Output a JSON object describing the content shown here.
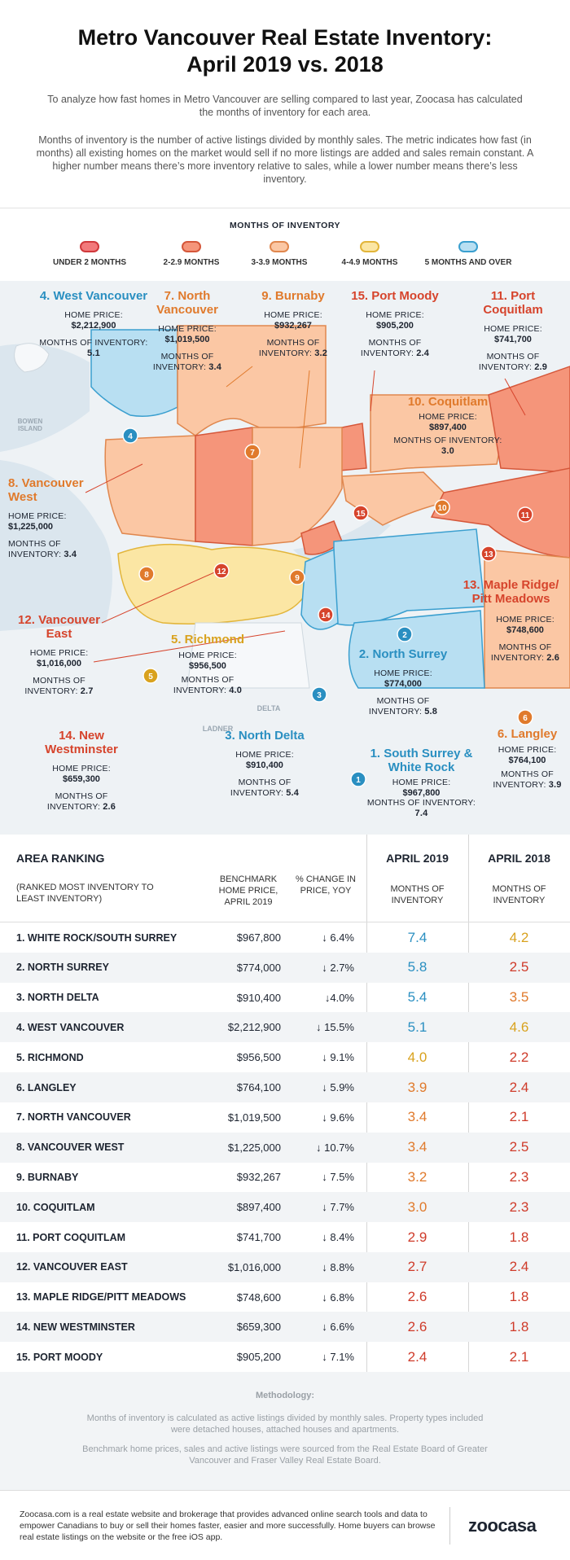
{
  "header": {
    "title_line1": "Metro Vancouver Real Estate Inventory:",
    "title_line2": "April 2019 vs. 2018",
    "intro": "To analyze how fast homes in Metro Vancouver are selling compared to last year, Zoocasa has calculated the months of inventory for each area.",
    "explanation": "Months of inventory is the number of active listings divided by monthly sales. The metric indicates how fast (in months) all existing homes on the market would sell if no more listings are added and sales remain constant. A higher number means there’s more inventory relative to sales, while a lower number means there’s less inventory."
  },
  "legend": {
    "title": "MONTHS OF INVENTORY",
    "items": [
      {
        "label": "UNDER 2 MONTHS",
        "fill": "#f2797b",
        "stroke": "#d0393c"
      },
      {
        "label": "2-2.9 MONTHS",
        "fill": "#f5957a",
        "stroke": "#d5573a"
      },
      {
        "label": "3-3.9 MONTHS",
        "fill": "#fbc7a4",
        "stroke": "#e0874e"
      },
      {
        "label": "4-4.9 MONTHS",
        "fill": "#fbe6a4",
        "stroke": "#e2b53a"
      },
      {
        "label": "5 MONTHS AND OVER",
        "fill": "#b8dff2",
        "stroke": "#3a9fcf"
      }
    ]
  },
  "map": {
    "field_price": "HOME PRICE:",
    "field_months": "MONTHS OF INVENTORY:",
    "bowen_island": "BOWEN ISLAND",
    "delta_label": "DELTA",
    "ladner_label": "LADNER",
    "areas": [
      {
        "num": "4",
        "name": "4. West Vancouver",
        "price": "$2,212,900",
        "months": "5.1",
        "color": "#2a8fc1"
      },
      {
        "num": "7",
        "name": "7. North Vancouver",
        "price": "$1,019,500",
        "months": "3.4",
        "color": "#e07a2c"
      },
      {
        "num": "9",
        "name": "9. Burnaby",
        "price": "$932,267",
        "months": "3.2",
        "color": "#e07a2c"
      },
      {
        "num": "15",
        "name": "15. Port Moody",
        "price": "$905,200",
        "months": "2.4",
        "color": "#d6442c"
      },
      {
        "num": "11",
        "name": "11. Port Coquitlam",
        "price": "$741,700",
        "months": "2.9",
        "color": "#d6442c"
      },
      {
        "num": "10",
        "name": "10. Coquitlam",
        "price": "$897,400",
        "months": "3.0",
        "color": "#e07a2c"
      },
      {
        "num": "8",
        "name": "8. Vancouver West",
        "price": "$1,225,000",
        "months": "3.4",
        "color": "#e07a2c"
      },
      {
        "num": "13",
        "name": "13. Maple Ridge/ Pitt Meadows",
        "price": "$748,600",
        "months": "2.6",
        "color": "#d6442c"
      },
      {
        "num": "12",
        "name": "12. Vancouver East",
        "price": "$1,016,000",
        "months": "2.7",
        "color": "#d6442c"
      },
      {
        "num": "5",
        "name": "5. Richmond",
        "price": "$956,500",
        "months": "4.0",
        "color": "#d9a21e"
      },
      {
        "num": "2",
        "name": "2. North Surrey",
        "price": "$774,000",
        "months": "5.8",
        "color": "#2a8fc1"
      },
      {
        "num": "6",
        "name": "6. Langley",
        "price": "$764,100",
        "months": "3.9",
        "color": "#e07a2c"
      },
      {
        "num": "14",
        "name": "14. New Westminster",
        "price": "$659,300",
        "months": "2.6",
        "color": "#d6442c"
      },
      {
        "num": "3",
        "name": "3. North Delta",
        "price": "$910,400",
        "months": "5.4",
        "color": "#2a8fc1"
      },
      {
        "num": "1",
        "name": "1. South Surrey & White Rock",
        "price": "$967,800",
        "months": "7.4",
        "color": "#2a8fc1"
      }
    ]
  },
  "table": {
    "h_ranking": "AREA RANKING",
    "h_ranking_sub": "(RANKED MOST INVENTORY TO LEAST INVENTORY)",
    "h_price": "BENCHMARK HOME PRICE, APRIL 2019",
    "h_change": "% CHANGE IN PRICE, YOY",
    "h_2019": "APRIL 2019",
    "h_2018": "APRIL 2018",
    "h_moi": "MONTHS OF INVENTORY"
  },
  "chart_data": {
    "type": "table",
    "columns": [
      "Area",
      "Benchmark home price, April 2019",
      "% change in price, YOY",
      "April 2019 months of inventory",
      "April 2018 months of inventory"
    ],
    "rows": [
      {
        "area": "1. WHITE ROCK/SOUTH SURREY",
        "price": "$967,800",
        "change": "↓ 6.4%",
        "m2019": "7.4",
        "m2018": "4.2",
        "c2019": "#2a8fc1",
        "c2018": "#d9a21e"
      },
      {
        "area": "2. NORTH SURREY",
        "price": "$774,000",
        "change": "↓ 2.7%",
        "m2019": "5.8",
        "m2018": "2.5",
        "c2019": "#2a8fc1",
        "c2018": "#cf3b2a"
      },
      {
        "area": "3. NORTH DELTA",
        "price": "$910,400",
        "change": "↓4.0%",
        "m2019": "5.4",
        "m2018": "3.5",
        "c2019": "#2a8fc1",
        "c2018": "#e07a2c"
      },
      {
        "area": "4. WEST VANCOUVER",
        "price": "$2,212,900",
        "change": "↓ 15.5%",
        "m2019": "5.1",
        "m2018": "4.6",
        "c2019": "#2a8fc1",
        "c2018": "#d9a21e"
      },
      {
        "area": "5. RICHMOND",
        "price": "$956,500",
        "change": "↓ 9.1%",
        "m2019": "4.0",
        "m2018": "2.2",
        "c2019": "#d9a21e",
        "c2018": "#cf3b2a"
      },
      {
        "area": "6. LANGLEY",
        "price": "$764,100",
        "change": "↓ 5.9%",
        "m2019": "3.9",
        "m2018": "2.4",
        "c2019": "#e07a2c",
        "c2018": "#cf3b2a"
      },
      {
        "area": "7. NORTH VANCOUVER",
        "price": "$1,019,500",
        "change": "↓ 9.6%",
        "m2019": "3.4",
        "m2018": "2.1",
        "c2019": "#e07a2c",
        "c2018": "#cf3b2a"
      },
      {
        "area": "8. VANCOUVER WEST",
        "price": "$1,225,000",
        "change": "↓ 10.7%",
        "m2019": "3.4",
        "m2018": "2.5",
        "c2019": "#e07a2c",
        "c2018": "#cf3b2a"
      },
      {
        "area": "9. BURNABY",
        "price": "$932,267",
        "change": "↓ 7.5%",
        "m2019": "3.2",
        "m2018": "2.3",
        "c2019": "#e07a2c",
        "c2018": "#cf3b2a"
      },
      {
        "area": "10. COQUITLAM",
        "price": "$897,400",
        "change": "↓ 7.7%",
        "m2019": "3.0",
        "m2018": "2.3",
        "c2019": "#e07a2c",
        "c2018": "#cf3b2a"
      },
      {
        "area": "11. PORT COQUITLAM",
        "price": "$741,700",
        "change": "↓ 8.4%",
        "m2019": "2.9",
        "m2018": "1.8",
        "c2019": "#cf3b2a",
        "c2018": "#cf3b2a"
      },
      {
        "area": "12. VANCOUVER EAST",
        "price": "$1,016,000",
        "change": "↓ 8.8%",
        "m2019": "2.7",
        "m2018": "2.4",
        "c2019": "#cf3b2a",
        "c2018": "#cf3b2a"
      },
      {
        "area": "13. MAPLE RIDGE/PITT MEADOWS",
        "price": "$748,600",
        "change": "↓ 6.8%",
        "m2019": "2.6",
        "m2018": "1.8",
        "c2019": "#cf3b2a",
        "c2018": "#cf3b2a"
      },
      {
        "area": "14. NEW WESTMINSTER",
        "price": "$659,300",
        "change": "↓ 6.6%",
        "m2019": "2.6",
        "m2018": "1.8",
        "c2019": "#cf3b2a",
        "c2018": "#cf3b2a"
      },
      {
        "area": "15. PORT MOODY",
        "price": "$905,200",
        "change": "↓ 7.1%",
        "m2019": "2.4",
        "m2018": "2.1",
        "c2019": "#cf3b2a",
        "c2018": "#cf3b2a"
      }
    ]
  },
  "methodology": {
    "title": "Methodology:",
    "p1": "Months of inventory is calculated as active listings divided by monthly sales. Property types included were detached houses, attached houses and apartments.",
    "p2": "Benchmark home prices, sales and active listings were sourced from the Real Estate Board of Greater Vancouver and Fraser Valley Real Estate Board."
  },
  "footer": {
    "text": "Zoocasa.com is a real estate website and brokerage that provides advanced online search tools and data to empower Canadians to buy or sell their homes faster, easier and more successfully. Home buyers can browse real estate listings on the website or the free iOS app.",
    "logo": "zoocasa"
  }
}
